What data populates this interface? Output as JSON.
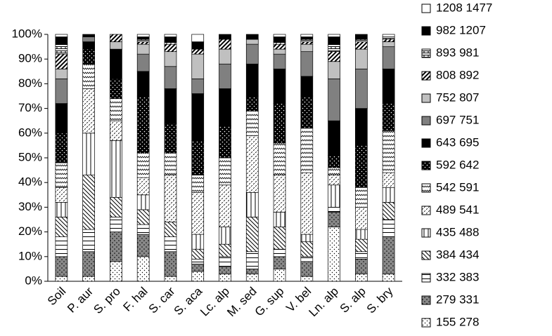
{
  "chart_data": {
    "type": "bar",
    "stacked": true,
    "categories": [
      "Soil",
      "P. aur",
      "S. pro",
      "F. hal",
      "S. car",
      "S. aca",
      "Lc. alp",
      "M. sed",
      "G. sup",
      "V. bel",
      "Ln. alp",
      "S. alp",
      "S. bry"
    ],
    "ylim": [
      0,
      100
    ],
    "yticks": [
      {
        "value": 0,
        "label": "0%"
      },
      {
        "value": 10,
        "label": "10%"
      },
      {
        "value": 20,
        "label": "20%"
      },
      {
        "value": 30,
        "label": "30%"
      },
      {
        "value": 40,
        "label": "40%"
      },
      {
        "value": 50,
        "label": "50%"
      },
      {
        "value": 60,
        "label": "60%"
      },
      {
        "value": 70,
        "label": "70%"
      },
      {
        "value": 80,
        "label": "80%"
      },
      {
        "value": 90,
        "label": "90%"
      },
      {
        "value": 100,
        "label": "100%"
      }
    ],
    "legend": "right",
    "series": [
      {
        "name": "155 278",
        "color": "#ffffff",
        "values": [
          2,
          2,
          8,
          10,
          2,
          4,
          3,
          3,
          5,
          2,
          22,
          3,
          3
        ]
      },
      {
        "name": "279 331",
        "color": "#888888",
        "values": [
          8,
          10,
          12,
          9,
          10,
          3,
          3,
          2,
          5,
          6,
          6,
          6,
          15
        ]
      },
      {
        "name": "332 383",
        "color": "#ffffff",
        "values": [
          8,
          9,
          6,
          4,
          6,
          2,
          4,
          7,
          3,
          2,
          2,
          3,
          7
        ]
      },
      {
        "name": "384 434",
        "color": "#ffffff",
        "values": [
          8,
          22,
          8,
          6,
          6,
          4,
          5,
          14,
          9,
          6,
          0,
          5,
          7
        ]
      },
      {
        "name": "435 488",
        "color": "#ffffff",
        "values": [
          6,
          17,
          23,
          6,
          0,
          6,
          7,
          10,
          6,
          3,
          9,
          4,
          6
        ]
      },
      {
        "name": "489 541",
        "color": "#ffffff",
        "values": [
          6,
          18,
          8,
          7,
          19,
          17,
          17,
          23,
          15,
          25,
          4,
          9,
          6
        ]
      },
      {
        "name": "542 591",
        "color": "#ffffff",
        "values": [
          10,
          10,
          9,
          10,
          9,
          7,
          11,
          10,
          13,
          18,
          3,
          8,
          17
        ]
      },
      {
        "name": "592 642",
        "color": "#000000",
        "values": [
          12,
          6,
          8,
          23,
          12,
          14,
          13,
          6,
          16,
          13,
          5,
          17,
          11
        ]
      },
      {
        "name": "643 695",
        "color": "#000000",
        "values": [
          12,
          3,
          12,
          10,
          14,
          19,
          15,
          13,
          14,
          8,
          14,
          15,
          14
        ]
      },
      {
        "name": "697 751",
        "color": "#808080",
        "values": [
          10,
          2,
          0,
          7,
          9,
          6,
          10,
          8,
          6,
          10,
          17,
          16,
          9
        ]
      },
      {
        "name": "752 807",
        "color": "#c0c0c0",
        "values": [
          4,
          0,
          3,
          4,
          6,
          10,
          6,
          2,
          2,
          3,
          7,
          8,
          2
        ]
      },
      {
        "name": "808 892",
        "color": "#ffffff",
        "values": [
          6,
          0,
          3,
          1,
          3,
          2,
          4,
          0,
          2,
          1,
          4,
          3,
          1
        ]
      },
      {
        "name": "893 981",
        "color": "#ffffff",
        "values": [
          4,
          0,
          0,
          1,
          1,
          0,
          0,
          0,
          1,
          1,
          3,
          1,
          1
        ]
      },
      {
        "name": "982 1207",
        "color": "#000000",
        "values": [
          3,
          1,
          0,
          1,
          2,
          3,
          2,
          2,
          2,
          1,
          3,
          2,
          0
        ]
      },
      {
        "name": "1208 1477",
        "color": "#ffffff",
        "values": [
          1,
          0,
          0,
          1,
          1,
          3,
          0,
          0,
          1,
          1,
          1,
          0,
          1
        ]
      }
    ]
  }
}
